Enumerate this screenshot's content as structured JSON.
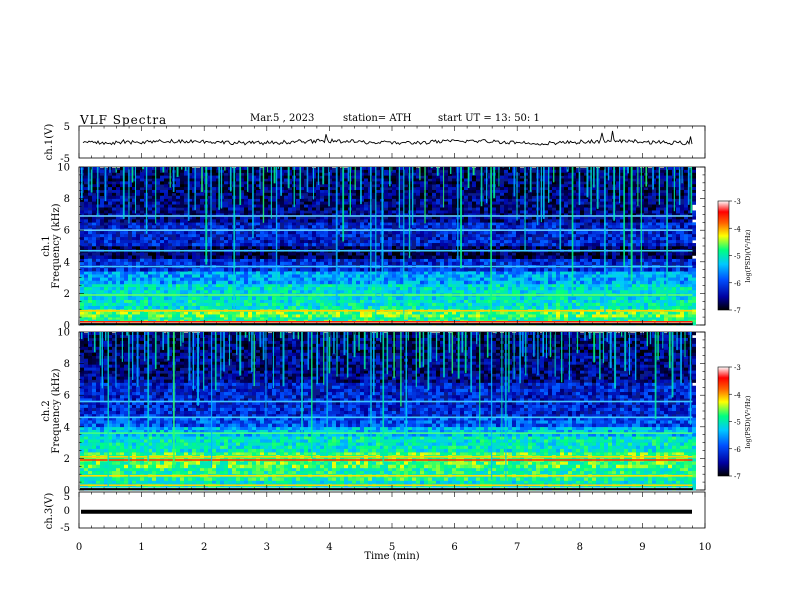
{
  "header": {
    "title": "VLF  Spectra",
    "date": "Mar.5  , 2023",
    "station": "station= ATH",
    "start_ut": "start  UT  =   13: 50: 1"
  },
  "colors": {
    "waveform": "#000000",
    "spectro_background": "#0a1a8a",
    "colormap": [
      "#000000",
      "#0000a0",
      "#0050ff",
      "#00c8ff",
      "#00ff80",
      "#ffff00",
      "#ff6000",
      "#ff0000",
      "#ffffff"
    ]
  },
  "chart_data": [
    {
      "type": "line",
      "name": "ch1-waveform",
      "ylabel": "ch.1(V)",
      "ylim": [
        -5,
        5
      ],
      "yticks": [
        "5",
        "-5"
      ],
      "xlim": [
        0,
        10
      ],
      "baseline": 0
    },
    {
      "type": "heatmap",
      "name": "ch1-spectrogram",
      "ylabel": "ch.1\nFrequency (kHz)",
      "ylabel_lines": [
        "ch.1",
        "Frequency  (kHz)"
      ],
      "ylim": [
        0,
        10
      ],
      "yticks": [
        "0",
        "2",
        "4",
        "6",
        "8",
        "10"
      ],
      "xlim": [
        0,
        10
      ],
      "colorbar": {
        "label": "log(PSD)(V²/Hz)",
        "ticks": [
          "-3",
          "-4",
          "-5",
          "-6",
          "-7"
        ],
        "range": [
          -7,
          -3
        ]
      }
    },
    {
      "type": "heatmap",
      "name": "ch2-spectrogram",
      "ylabel_lines": [
        "ch.2",
        "Frequency  (kHz)"
      ],
      "ylim": [
        0,
        10
      ],
      "yticks": [
        "0",
        "2",
        "4",
        "6",
        "8",
        "10"
      ],
      "xlim": [
        0,
        10
      ],
      "colorbar": {
        "label": "log(PSD)(V²/Hz)",
        "ticks": [
          "-3",
          "-4",
          "-5",
          "-6",
          "-7"
        ],
        "range": [
          -7,
          -3
        ]
      }
    },
    {
      "type": "line",
      "name": "ch3-waveform",
      "ylabel": "ch.3(V)",
      "ylim": [
        -5,
        5
      ],
      "yticks": [
        "5",
        "0",
        "-5"
      ],
      "xlim": [
        0,
        10
      ],
      "baseline": -0.5
    }
  ],
  "xaxis": {
    "label": "Time  (min)",
    "ticks": [
      "0",
      "1",
      "2",
      "3",
      "4",
      "5",
      "6",
      "7",
      "8",
      "9",
      "10"
    ],
    "data_end_min": 9.8
  }
}
